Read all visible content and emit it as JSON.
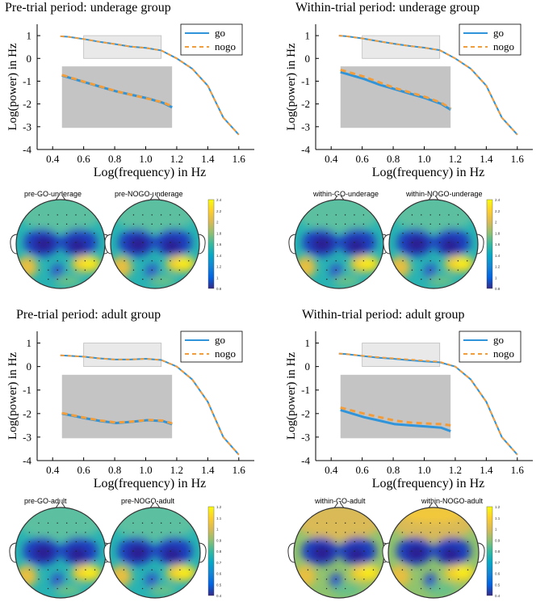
{
  "colors": {
    "go": "#2f94d9",
    "nogo": "#f39c3a",
    "inset_light": "#e9e9e9",
    "inset_dark": "#c4c4c4"
  },
  "legend": {
    "go": "go",
    "nogo": "nogo"
  },
  "axes": {
    "xlabel": "Log(frequency) in Hz",
    "ylabel": "Log(power) in Hz",
    "xticks": [
      "0.4",
      "0.6",
      "0.8",
      "1.0",
      "1.2",
      "1.4",
      "1.6"
    ],
    "yticks": [
      "1",
      "0",
      "-1",
      "-2",
      "-3",
      "-4"
    ]
  },
  "chart_data": [
    {
      "type": "line",
      "title": "Pre-trial period: underage group",
      "x": [
        0.45,
        0.5,
        0.6,
        0.7,
        0.8,
        0.9,
        1.0,
        1.1,
        1.2,
        1.3,
        1.4,
        1.5,
        1.6
      ],
      "series": [
        {
          "name": "go",
          "values": [
            0.97,
            0.95,
            0.85,
            0.73,
            0.63,
            0.52,
            0.46,
            0.35,
            0.0,
            -0.45,
            -1.2,
            -2.6,
            -3.35
          ]
        },
        {
          "name": "nogo",
          "values": [
            0.97,
            0.95,
            0.85,
            0.73,
            0.63,
            0.52,
            0.46,
            0.35,
            0.0,
            -0.45,
            -1.2,
            -2.6,
            -3.35
          ]
        }
      ],
      "inset": {
        "x": [
          0.45,
          0.6,
          0.7,
          0.8,
          0.9,
          1.0,
          1.1,
          1.16
        ],
        "go": [
          -0.75,
          -1.05,
          -1.25,
          -1.45,
          -1.6,
          -1.75,
          -1.95,
          -2.15
        ],
        "nogo": [
          -0.73,
          -1.04,
          -1.24,
          -1.44,
          -1.6,
          -1.76,
          -1.93,
          -2.1
        ]
      },
      "topo": {
        "left": "pre-GO-underage",
        "right": "pre-NOGO-underage",
        "cb_max": "2.4",
        "cb_min": "0.8",
        "cb_ticks": [
          "2.4",
          "2.2",
          "2",
          "1.8",
          "1.6",
          "1.4",
          "1.2",
          "1",
          "0.8"
        ]
      },
      "xlabel": "Log(frequency) in Hz",
      "ylabel": "Log(power) in Hz",
      "ylim": [
        -4,
        1.5
      ],
      "xlim": [
        0.3,
        1.7
      ]
    },
    {
      "type": "line",
      "title": "Within-trial period: underage group",
      "x": [
        0.45,
        0.5,
        0.6,
        0.7,
        0.8,
        0.9,
        1.0,
        1.1,
        1.2,
        1.3,
        1.4,
        1.5,
        1.6
      ],
      "series": [
        {
          "name": "go",
          "values": [
            1.0,
            0.97,
            0.88,
            0.76,
            0.65,
            0.55,
            0.47,
            0.36,
            0.0,
            -0.45,
            -1.2,
            -2.6,
            -3.35
          ]
        },
        {
          "name": "nogo",
          "values": [
            1.0,
            0.97,
            0.88,
            0.76,
            0.65,
            0.55,
            0.47,
            0.36,
            0.0,
            -0.45,
            -1.2,
            -2.6,
            -3.35
          ]
        }
      ],
      "inset": {
        "x": [
          0.45,
          0.6,
          0.7,
          0.8,
          0.9,
          1.0,
          1.1,
          1.16
        ],
        "go": [
          -0.6,
          -0.9,
          -1.15,
          -1.35,
          -1.55,
          -1.75,
          -2.0,
          -2.25
        ],
        "nogo": [
          -0.5,
          -0.8,
          -1.05,
          -1.3,
          -1.5,
          -1.7,
          -1.95,
          -2.2
        ]
      },
      "topo": {
        "left": "within-GO-underage",
        "right": "within-NOGO-underage",
        "cb_max": "2.4",
        "cb_min": "0.8",
        "cb_ticks": [
          "2.4",
          "2.2",
          "2",
          "1.8",
          "1.6",
          "1.4",
          "1.2",
          "1",
          "0.8"
        ]
      },
      "xlabel": "Log(frequency) in Hz",
      "ylabel": "Log(power) in Hz",
      "ylim": [
        -4,
        1.5
      ],
      "xlim": [
        0.3,
        1.7
      ]
    },
    {
      "type": "line",
      "title": "Pre-trial period: adult group",
      "x": [
        0.45,
        0.5,
        0.6,
        0.7,
        0.8,
        0.9,
        1.0,
        1.1,
        1.2,
        1.3,
        1.4,
        1.5,
        1.6
      ],
      "series": [
        {
          "name": "go",
          "values": [
            0.48,
            0.46,
            0.42,
            0.35,
            0.3,
            0.3,
            0.33,
            0.28,
            0.0,
            -0.55,
            -1.5,
            -3.0,
            -3.75
          ]
        },
        {
          "name": "nogo",
          "values": [
            0.48,
            0.46,
            0.42,
            0.35,
            0.3,
            0.3,
            0.33,
            0.28,
            0.0,
            -0.55,
            -1.5,
            -3.0,
            -3.75
          ]
        }
      ],
      "inset": {
        "x": [
          0.45,
          0.6,
          0.7,
          0.8,
          0.9,
          1.0,
          1.1,
          1.16
        ],
        "go": [
          -2.0,
          -2.2,
          -2.32,
          -2.4,
          -2.35,
          -2.28,
          -2.32,
          -2.45
        ],
        "nogo": [
          -1.98,
          -2.18,
          -2.3,
          -2.38,
          -2.34,
          -2.27,
          -2.3,
          -2.42
        ]
      },
      "topo": {
        "left": "pre-GO-adult",
        "right": "pre-NOGO-adult",
        "cb_max": "1.2",
        "cb_min": "0.4",
        "cb_ticks": [
          "1.2",
          "1.1",
          "1",
          "0.9",
          "0.8",
          "0.7",
          "0.6",
          "0.5",
          "0.4"
        ]
      },
      "xlabel": "Log(frequency) in Hz",
      "ylabel": "Log(power) in Hz",
      "ylim": [
        -4,
        1.5
      ],
      "xlim": [
        0.3,
        1.7
      ]
    },
    {
      "type": "line",
      "title": "Within-trial period: adult group",
      "x": [
        0.45,
        0.5,
        0.6,
        0.7,
        0.8,
        0.9,
        1.0,
        1.1,
        1.2,
        1.3,
        1.4,
        1.5,
        1.6
      ],
      "series": [
        {
          "name": "go",
          "values": [
            0.55,
            0.53,
            0.45,
            0.38,
            0.33,
            0.27,
            0.22,
            0.18,
            0.0,
            -0.55,
            -1.5,
            -3.0,
            -3.75
          ]
        },
        {
          "name": "nogo",
          "values": [
            0.55,
            0.53,
            0.46,
            0.4,
            0.35,
            0.3,
            0.25,
            0.2,
            0.0,
            -0.55,
            -1.5,
            -3.0,
            -3.75
          ]
        }
      ],
      "inset": {
        "x": [
          0.45,
          0.6,
          0.7,
          0.8,
          0.9,
          1.0,
          1.1,
          1.16
        ],
        "go": [
          -1.85,
          -2.15,
          -2.3,
          -2.45,
          -2.5,
          -2.55,
          -2.6,
          -2.75
        ],
        "nogo": [
          -1.75,
          -2.0,
          -2.15,
          -2.3,
          -2.38,
          -2.42,
          -2.45,
          -2.5
        ]
      },
      "topo": {
        "left": "within-GO-adult",
        "right": "within-NOGO-adult",
        "cb_max": "1.2",
        "cb_min": "0.4",
        "cb_ticks": [
          "1.2",
          "1.1",
          "1",
          "0.9",
          "0.8",
          "0.7",
          "0.6",
          "0.5",
          "0.4"
        ]
      },
      "xlabel": "Log(frequency) in Hz",
      "ylabel": "Log(power) in Hz",
      "ylim": [
        -4,
        1.5
      ],
      "xlim": [
        0.3,
        1.7
      ]
    }
  ]
}
